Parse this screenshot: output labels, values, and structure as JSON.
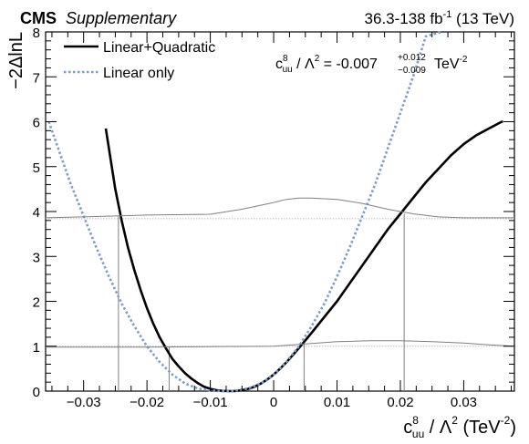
{
  "header": {
    "experiment": "CMS",
    "tag": "Supplementary",
    "lumi_main": "36.3-138 fb",
    "lumi_sup": "-1",
    "lumi_suffix": " (13 TeV)"
  },
  "result": {
    "lhs_base": "c",
    "lhs_sup": "8",
    "lhs_sub": "uu",
    "lhs_mid": " / Λ",
    "lhs_mid_sup": "2",
    "eq": " = -0.007",
    "err_up": "+0.012",
    "err_down": "−0.009",
    "unit": " TeV",
    "unit_sup": "-2"
  },
  "axis_labels": {
    "y": "−2ΔlnL",
    "x_base": "c",
    "x_sup": "8",
    "x_sub": "uu",
    "x_mid": " / Λ",
    "x_mid_sup": "2",
    "x_unit": " (TeV",
    "x_unit_sup": "-2",
    "x_close": ")"
  },
  "colors": {
    "quad": "#000000",
    "linear": "#7b9bd2",
    "threshold": "#bbbbbb",
    "guide": "#808080"
  },
  "chart_data": {
    "type": "line",
    "xlim": [
      -0.036,
      0.038
    ],
    "ylim": [
      0,
      8
    ],
    "x_ticks": [
      -0.03,
      -0.02,
      -0.01,
      0,
      0.01,
      0.02,
      0.03
    ],
    "x_tick_labels": [
      "−0.03",
      "−0.02",
      "−0.01",
      "0",
      "0.01",
      "0.02",
      "0.03"
    ],
    "y_ticks": [
      0,
      1,
      2,
      3,
      4,
      5,
      6,
      7,
      8
    ],
    "y_tick_labels": [
      "0",
      "1",
      "2",
      "3",
      "4",
      "5",
      "6",
      "7",
      "8"
    ],
    "legend_position": "top-left",
    "series": [
      {
        "name": "Linear+Quadratic",
        "style": "solid",
        "x": [
          -0.0265,
          -0.025,
          -0.024,
          -0.023,
          -0.022,
          -0.021,
          -0.02,
          -0.019,
          -0.018,
          -0.017,
          -0.016,
          -0.015,
          -0.014,
          -0.013,
          -0.012,
          -0.011,
          -0.01,
          -0.009,
          -0.008,
          -0.007,
          -0.006,
          -0.005,
          -0.004,
          -0.003,
          -0.002,
          -0.001,
          0.0,
          0.001,
          0.002,
          0.003,
          0.004,
          0.005,
          0.006,
          0.008,
          0.01,
          0.012,
          0.014,
          0.016,
          0.018,
          0.02,
          0.022,
          0.024,
          0.026,
          0.028,
          0.03,
          0.032,
          0.034,
          0.036,
          0.0362
        ],
        "y": [
          5.85,
          4.5,
          3.8,
          3.2,
          2.7,
          2.25,
          1.85,
          1.5,
          1.2,
          0.95,
          0.72,
          0.55,
          0.4,
          0.28,
          0.18,
          0.1,
          0.05,
          0.02,
          0.005,
          0.0,
          0.005,
          0.02,
          0.05,
          0.1,
          0.17,
          0.26,
          0.37,
          0.5,
          0.64,
          0.8,
          0.96,
          1.13,
          1.3,
          1.65,
          2.0,
          2.4,
          2.8,
          3.2,
          3.6,
          3.95,
          4.3,
          4.65,
          4.95,
          5.25,
          5.5,
          5.7,
          5.85,
          6.0,
          6.0
        ]
      },
      {
        "name": "Linear only",
        "style": "dotted",
        "x": [
          -0.0355,
          -0.034,
          -0.032,
          -0.03,
          -0.028,
          -0.026,
          -0.024,
          -0.022,
          -0.02,
          -0.018,
          -0.016,
          -0.014,
          -0.012,
          -0.01,
          -0.008,
          -0.007,
          -0.006,
          -0.004,
          -0.002,
          0.0,
          0.002,
          0.004,
          0.006,
          0.008,
          0.01,
          0.012,
          0.014,
          0.016,
          0.018,
          0.02,
          0.022,
          0.024,
          0.0265
        ],
        "y": [
          6.0,
          5.4,
          4.6,
          3.9,
          3.2,
          2.55,
          1.95,
          1.45,
          1.0,
          0.65,
          0.37,
          0.17,
          0.06,
          0.01,
          0.0,
          0.0,
          0.01,
          0.06,
          0.17,
          0.37,
          0.65,
          1.0,
          1.45,
          1.95,
          2.55,
          3.2,
          3.9,
          4.6,
          5.4,
          6.2,
          7.0,
          7.9,
          8.0
        ]
      },
      {
        "name": "",
        "style": "threshold-upper",
        "x": [
          -0.036,
          -0.03,
          -0.02,
          -0.01,
          -0.005,
          0.0,
          0.002,
          0.004,
          0.006,
          0.01,
          0.014,
          0.018,
          0.022,
          0.026,
          0.03,
          0.034,
          0.038
        ],
        "y": [
          3.86,
          3.88,
          3.92,
          3.94,
          4.05,
          4.2,
          4.27,
          4.3,
          4.3,
          4.27,
          4.18,
          4.05,
          3.95,
          3.88,
          3.86,
          3.86,
          3.86
        ]
      },
      {
        "name": "",
        "style": "threshold-lower",
        "x": [
          -0.036,
          -0.02,
          -0.01,
          0.0,
          0.005,
          0.01,
          0.015,
          0.02,
          0.025,
          0.03,
          0.034,
          0.038
        ],
        "y": [
          0.98,
          0.98,
          0.99,
          1.0,
          1.05,
          1.1,
          1.12,
          1.12,
          1.1,
          1.07,
          1.03,
          1.0
        ]
      }
    ],
    "reference_lines": [
      3.84,
      1.0
    ],
    "interval_markers": [
      {
        "x": -0.0245,
        "y": 3.9
      },
      {
        "x": -0.0165,
        "y": 0.98
      },
      {
        "x": 0.0048,
        "y": 1.05
      },
      {
        "x": 0.0206,
        "y": 3.95
      }
    ]
  }
}
